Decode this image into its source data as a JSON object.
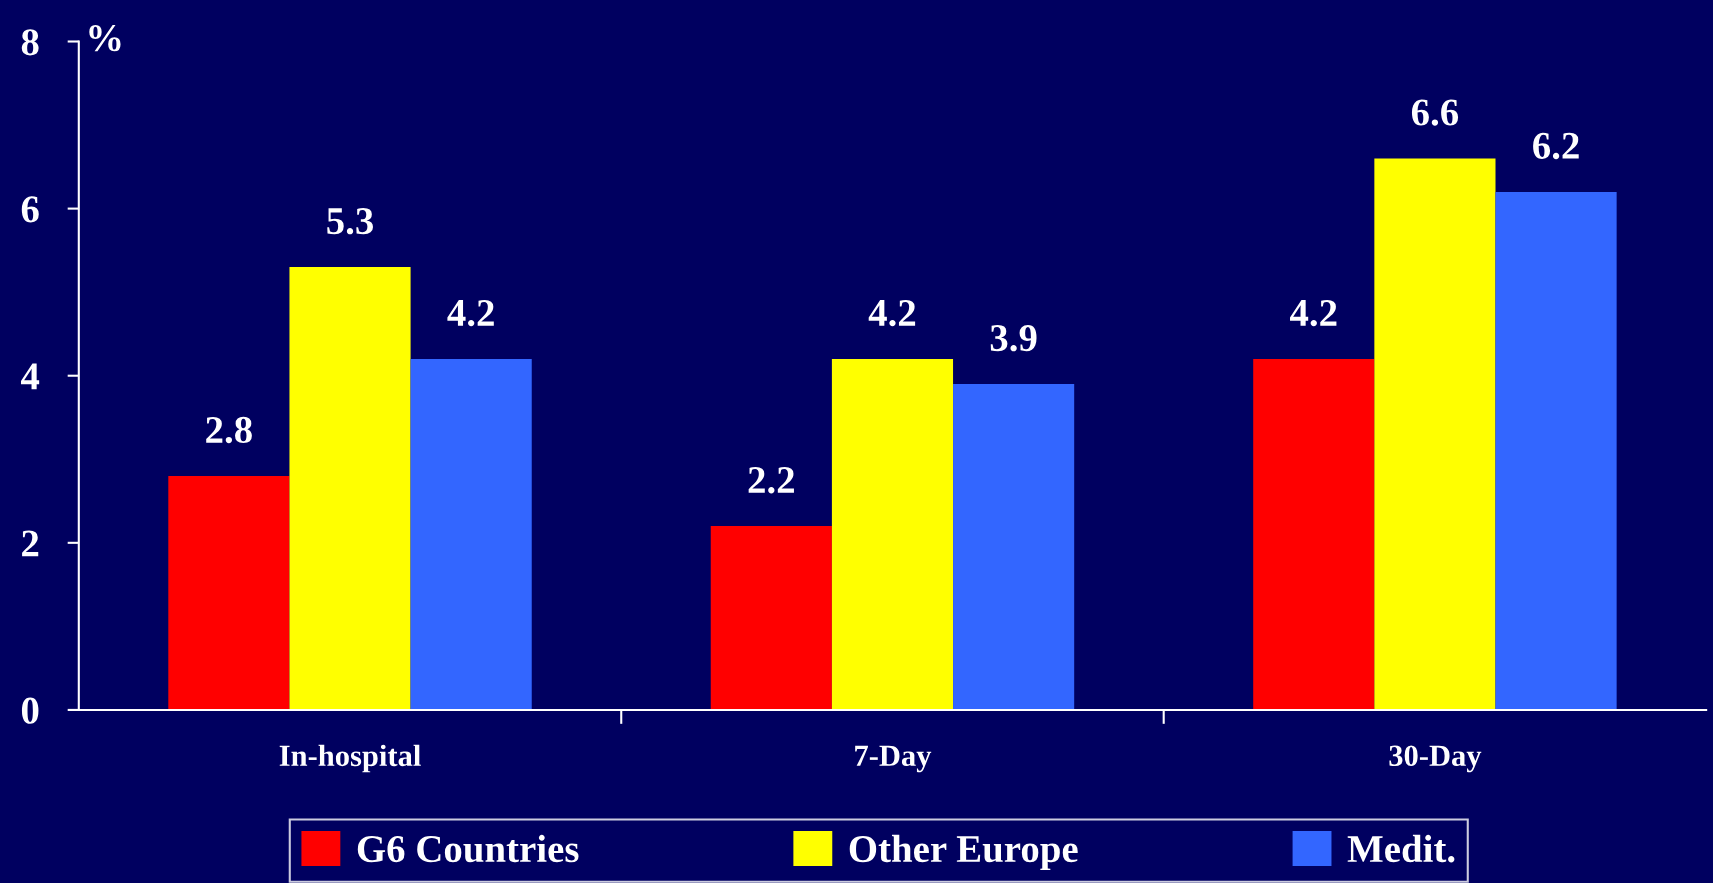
{
  "chart_data": {
    "type": "bar",
    "ylabel": "%",
    "categories": [
      "In-hospital",
      "7-Day",
      "30-Day"
    ],
    "series": [
      {
        "name": "G6 Countries",
        "color": "#ff0000",
        "values": [
          2.8,
          2.2,
          4.2
        ]
      },
      {
        "name": "Other Europe",
        "color": "#ffff00",
        "values": [
          5.3,
          4.2,
          6.6
        ]
      },
      {
        "name": "Medit.",
        "color": "#3366ff",
        "values": [
          4.2,
          3.9,
          6.2
        ]
      }
    ],
    "ylim": [
      0,
      8
    ],
    "yticks": [
      0,
      2,
      4,
      6,
      8
    ],
    "grid": false,
    "legend": "bottom",
    "data_labels": true
  }
}
